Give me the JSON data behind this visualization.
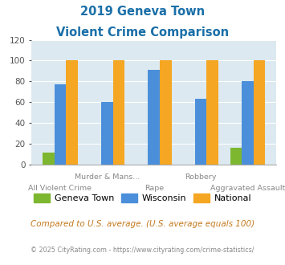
{
  "title_line1": "2019 Geneva Town",
  "title_line2": "Violent Crime Comparison",
  "categories": [
    "All Violent Crime",
    "Murder & Mans...",
    "Rape",
    "Robbery",
    "Aggravated Assault"
  ],
  "label_row": [
    "bottom",
    "top",
    "bottom",
    "top",
    "bottom"
  ],
  "geneva_town": [
    11,
    0,
    0,
    0,
    16
  ],
  "wisconsin": [
    77,
    60,
    91,
    63,
    80
  ],
  "national": [
    100,
    100,
    100,
    100,
    100
  ],
  "color_geneva": "#7db72f",
  "color_wisconsin": "#4b8fdb",
  "color_national": "#f5a623",
  "ylim": [
    0,
    120
  ],
  "yticks": [
    0,
    20,
    40,
    60,
    80,
    100,
    120
  ],
  "bg_color": "#dce9f0",
  "title_color": "#1a6fa8",
  "footer_text": "Compared to U.S. average. (U.S. average equals 100)",
  "footer_color": "#c47a20",
  "copyright_text": "© 2025 CityRating.com - https://www.cityrating.com/crime-statistics/",
  "copyright_color": "#888888",
  "bar_width": 0.25
}
